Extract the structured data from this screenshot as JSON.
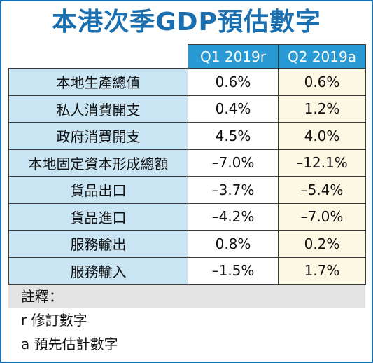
{
  "title": "本港次季GDP預估數字",
  "columns": [
    "Q1 2019r",
    "Q2 2019a"
  ],
  "rows": [
    {
      "label": "本地生產總值",
      "q1": "0.6%",
      "q2": "0.6%"
    },
    {
      "label": "私人消費開支",
      "q1": "0.4%",
      "q2": "1.2%"
    },
    {
      "label": "政府消費開支",
      "q1": "4.5%",
      "q2": "4.0%"
    },
    {
      "label": "本地固定資本形成總額",
      "q1": "–7.0%",
      "q2": "–12.1%"
    },
    {
      "label": "貨品出口",
      "q1": "–3.7%",
      "q2": "–5.4%"
    },
    {
      "label": "貨品進口",
      "q1": "–4.2%",
      "q2": "–7.0%"
    },
    {
      "label": "服務輸出",
      "q1": "0.8%",
      "q2": "0.2%"
    },
    {
      "label": "服務輸入",
      "q1": "–1.5%",
      "q2": "1.7%"
    }
  ],
  "notes": {
    "heading": "註釋：",
    "items": [
      "r  修訂數字",
      "a  預先估計數字"
    ]
  },
  "colors": {
    "accent": "#1a6fb0",
    "header_bg": "#2a9ad4",
    "label_bg": "#c9e5f4",
    "q2_bg": "#fdf8e3",
    "notes_bg": "#e3e3e3"
  }
}
